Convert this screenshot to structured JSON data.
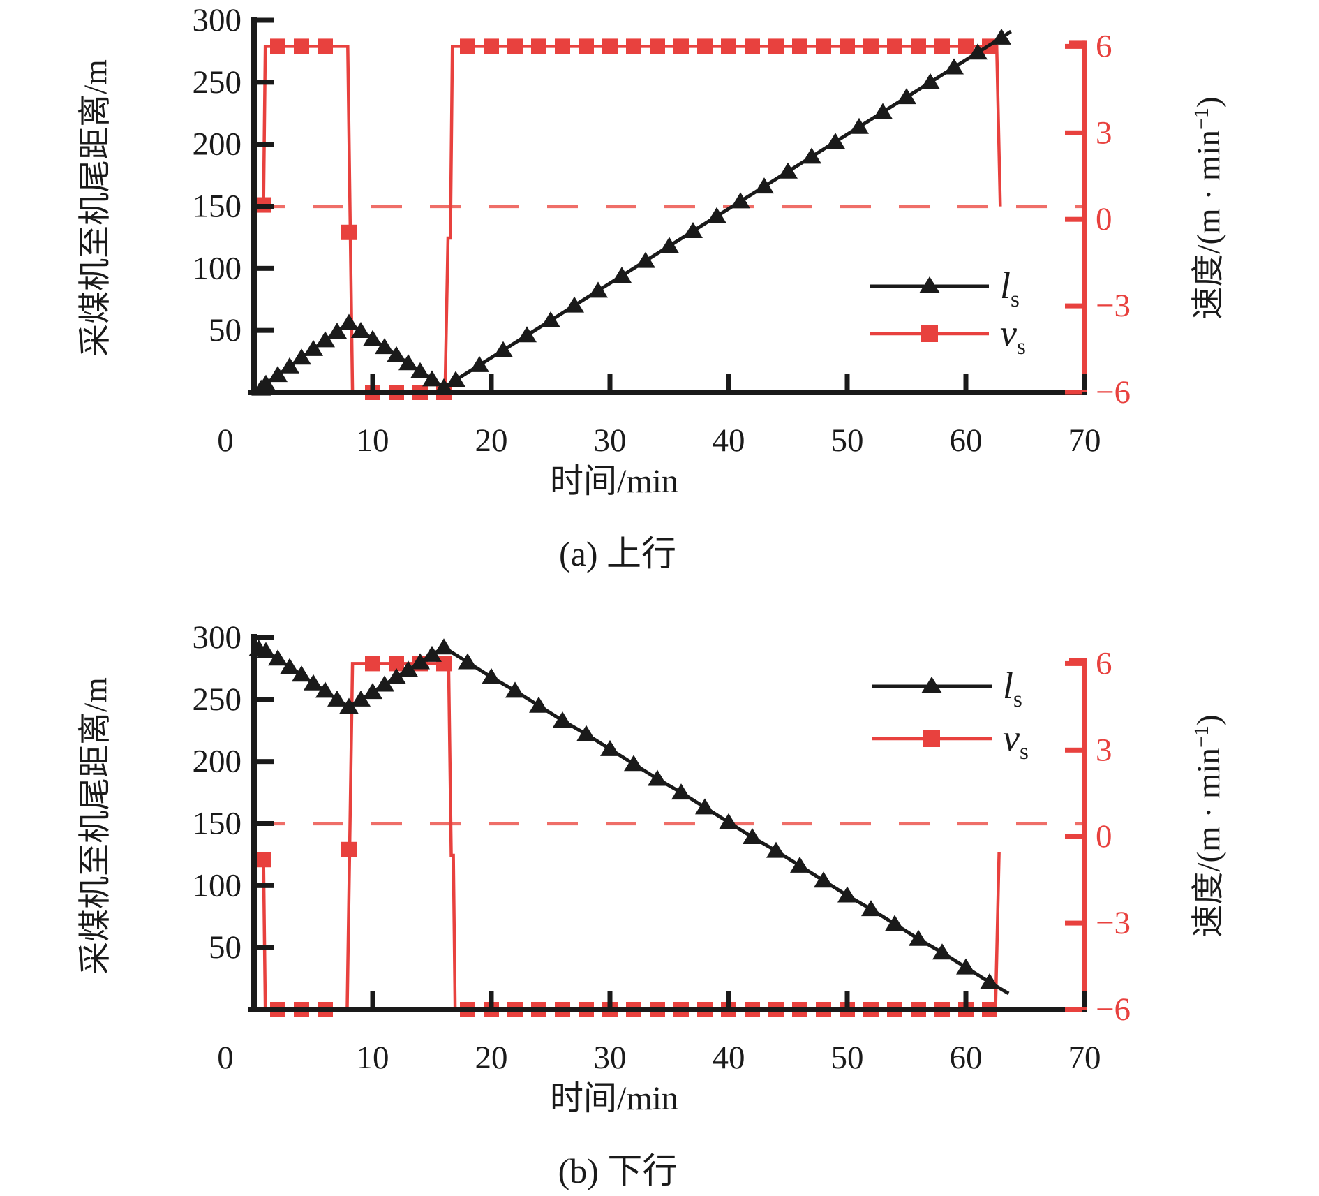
{
  "figure": {
    "x_axis_label": "时间/min",
    "left_axis_label": "采煤机至机尾距离/m",
    "right_axis_label": "速度/(m·min⁻¹)",
    "right_axis_label_parts": {
      "pre": "速度/(m · min",
      "sup": "−1",
      "post": ")"
    },
    "colors": {
      "black": "#1a1a1a",
      "red": "#e8413e",
      "dashed_red": "#ef6e68",
      "background": "#ffffff"
    },
    "legend": [
      {
        "key": "ls",
        "label": "l",
        "sub": "s",
        "color": "#1a1a1a",
        "marker": "triangle"
      },
      {
        "key": "vs",
        "label": "v",
        "sub": "s",
        "color": "#e8413e",
        "marker": "square"
      }
    ]
  },
  "chart_data": [
    {
      "id": "a",
      "type": "line",
      "title": "(a) 上行",
      "xlabel": "时间/min",
      "ylabel_left": "采煤机至机尾距离/m",
      "ylabel_right": "速度/(m·min⁻¹)",
      "x_range": [
        0,
        70
      ],
      "x_ticks": [
        0,
        10,
        20,
        30,
        40,
        50,
        60,
        70
      ],
      "left_range": [
        0,
        300
      ],
      "left_ticks": [
        50,
        100,
        150,
        200,
        250,
        300
      ],
      "right_range": [
        -6,
        6
      ],
      "right_ticks": [
        6,
        3,
        0,
        -3,
        -6
      ],
      "dashed_reference": {
        "axis": "right",
        "value": 0.45,
        "style": "dashed",
        "note": "zero-speed reference line"
      },
      "series": [
        {
          "name": "l_s",
          "axis": "left",
          "marker": "triangle",
          "color": "#1a1a1a",
          "markers": [
            [
              0.6,
              3
            ],
            [
              1,
              7
            ],
            [
              2,
              14
            ],
            [
              3,
              21
            ],
            [
              4,
              28
            ],
            [
              5,
              35
            ],
            [
              6,
              42
            ],
            [
              7,
              49
            ],
            [
              8,
              56
            ],
            [
              9,
              49.5
            ],
            [
              10,
              43
            ],
            [
              11,
              36.5
            ],
            [
              12,
              30
            ],
            [
              13,
              23.5
            ],
            [
              14,
              17
            ],
            [
              15,
              10.5
            ],
            [
              16,
              4
            ],
            [
              17,
              10
            ],
            [
              19,
              22
            ],
            [
              21,
              34
            ],
            [
              23,
              46
            ],
            [
              25,
              58
            ],
            [
              27,
              70
            ],
            [
              29,
              82
            ],
            [
              31,
              94
            ],
            [
              33,
              106
            ],
            [
              35,
              118
            ],
            [
              37,
              130
            ],
            [
              39,
              142
            ],
            [
              41,
              154
            ],
            [
              43,
              166
            ],
            [
              45,
              178
            ],
            [
              47,
              190
            ],
            [
              49,
              202
            ],
            [
              51,
              214
            ],
            [
              53,
              226
            ],
            [
              55,
              238
            ],
            [
              57,
              250
            ],
            [
              59,
              262
            ],
            [
              61,
              274
            ],
            [
              63,
              286
            ]
          ],
          "line_extra_end": [
            63.8,
            291
          ]
        },
        {
          "name": "v_s",
          "axis": "right",
          "marker": "square",
          "color": "#e8413e",
          "markers": [
            [
              0.8,
              0.5
            ],
            [
              2,
              6
            ],
            [
              4,
              6
            ],
            [
              6,
              6
            ],
            [
              8,
              -0.45
            ],
            [
              10,
              -6
            ],
            [
              12,
              -6
            ],
            [
              14,
              -6
            ],
            [
              16,
              -6
            ],
            [
              18,
              6
            ],
            [
              20,
              6
            ],
            [
              22,
              6
            ],
            [
              24,
              6
            ],
            [
              26,
              6
            ],
            [
              28,
              6
            ],
            [
              30,
              6
            ],
            [
              32,
              6
            ],
            [
              34,
              6
            ],
            [
              36,
              6
            ],
            [
              38,
              6
            ],
            [
              40,
              6
            ],
            [
              42,
              6
            ],
            [
              44,
              6
            ],
            [
              46,
              6
            ],
            [
              48,
              6
            ],
            [
              50,
              6
            ],
            [
              52,
              6
            ],
            [
              54,
              6
            ],
            [
              56,
              6
            ],
            [
              58,
              6
            ],
            [
              60,
              6
            ],
            [
              62,
              6
            ]
          ],
          "line": [
            [
              0.8,
              0.5
            ],
            [
              0.95,
              6
            ],
            [
              7.9,
              6
            ],
            [
              8.3,
              -6
            ],
            [
              16.1,
              -6
            ],
            [
              16.35,
              -0.65
            ],
            [
              16.55,
              -0.65
            ],
            [
              16.72,
              6
            ],
            [
              62.6,
              6
            ],
            [
              62.9,
              0.45
            ]
          ]
        }
      ]
    },
    {
      "id": "b",
      "type": "line",
      "title": "(b) 下行",
      "xlabel": "时间/min",
      "ylabel_left": "采煤机至机尾距离/m",
      "ylabel_right": "速度/(m·min⁻¹)",
      "x_range": [
        0,
        70
      ],
      "x_ticks": [
        0,
        10,
        20,
        30,
        40,
        50,
        60,
        70
      ],
      "left_range": [
        0,
        300
      ],
      "left_ticks": [
        50,
        100,
        150,
        200,
        250,
        300
      ],
      "right_range": [
        -6,
        6
      ],
      "right_ticks": [
        6,
        3,
        0,
        -3,
        -6
      ],
      "dashed_reference": {
        "axis": "right",
        "value": 0.45,
        "style": "dashed",
        "note": "zero-speed reference line"
      },
      "series": [
        {
          "name": "l_s",
          "axis": "left",
          "marker": "triangle",
          "color": "#1a1a1a",
          "markers": [
            [
              0.4,
              291
            ],
            [
              1,
              289
            ],
            [
              2,
              283
            ],
            [
              3,
              276
            ],
            [
              4,
              270
            ],
            [
              5,
              263
            ],
            [
              6,
              257
            ],
            [
              7,
              250
            ],
            [
              8,
              244
            ],
            [
              9,
              250
            ],
            [
              10,
              256
            ],
            [
              11,
              262
            ],
            [
              12,
              268
            ],
            [
              13,
              274
            ],
            [
              14,
              280
            ],
            [
              15,
              286
            ],
            [
              16,
              292
            ],
            [
              18,
              280
            ],
            [
              20,
              268
            ],
            [
              22,
              257
            ],
            [
              24,
              245
            ],
            [
              26,
              233
            ],
            [
              28,
              222
            ],
            [
              30,
              210
            ],
            [
              32,
              198
            ],
            [
              34,
              186
            ],
            [
              36,
              175
            ],
            [
              38,
              163
            ],
            [
              40,
              151
            ],
            [
              42,
              139
            ],
            [
              44,
              128
            ],
            [
              46,
              116
            ],
            [
              48,
              104
            ],
            [
              50,
              92
            ],
            [
              52,
              81
            ],
            [
              54,
              69
            ],
            [
              56,
              57
            ],
            [
              58,
              46
            ],
            [
              60,
              34
            ],
            [
              62,
              22
            ]
          ],
          "line_extra_start": [
            0.2,
            294
          ],
          "line_extra_end": [
            63.6,
            13
          ]
        },
        {
          "name": "v_s",
          "axis": "right",
          "marker": "square",
          "color": "#e8413e",
          "markers": [
            [
              0.8,
              -0.8
            ],
            [
              2,
              -6
            ],
            [
              4,
              -6
            ],
            [
              6,
              -6
            ],
            [
              8,
              -0.45
            ],
            [
              10,
              6
            ],
            [
              12,
              6
            ],
            [
              14,
              6
            ],
            [
              16,
              6
            ],
            [
              18,
              -6
            ],
            [
              20,
              -6
            ],
            [
              22,
              -6
            ],
            [
              24,
              -6
            ],
            [
              26,
              -6
            ],
            [
              28,
              -6
            ],
            [
              30,
              -6
            ],
            [
              32,
              -6
            ],
            [
              34,
              -6
            ],
            [
              36,
              -6
            ],
            [
              38,
              -6
            ],
            [
              40,
              -6
            ],
            [
              42,
              -6
            ],
            [
              44,
              -6
            ],
            [
              46,
              -6
            ],
            [
              48,
              -6
            ],
            [
              50,
              -6
            ],
            [
              52,
              -6
            ],
            [
              54,
              -6
            ],
            [
              56,
              -6
            ],
            [
              58,
              -6
            ],
            [
              60,
              -6
            ],
            [
              62,
              -6
            ]
          ],
          "line": [
            [
              0.8,
              -0.8
            ],
            [
              0.95,
              -6
            ],
            [
              7.85,
              -6
            ],
            [
              8.3,
              6
            ],
            [
              16.4,
              6
            ],
            [
              16.62,
              -0.65
            ],
            [
              16.8,
              -0.65
            ],
            [
              16.95,
              -6
            ],
            [
              62.5,
              -6
            ],
            [
              62.8,
              -0.55
            ]
          ]
        }
      ]
    }
  ]
}
